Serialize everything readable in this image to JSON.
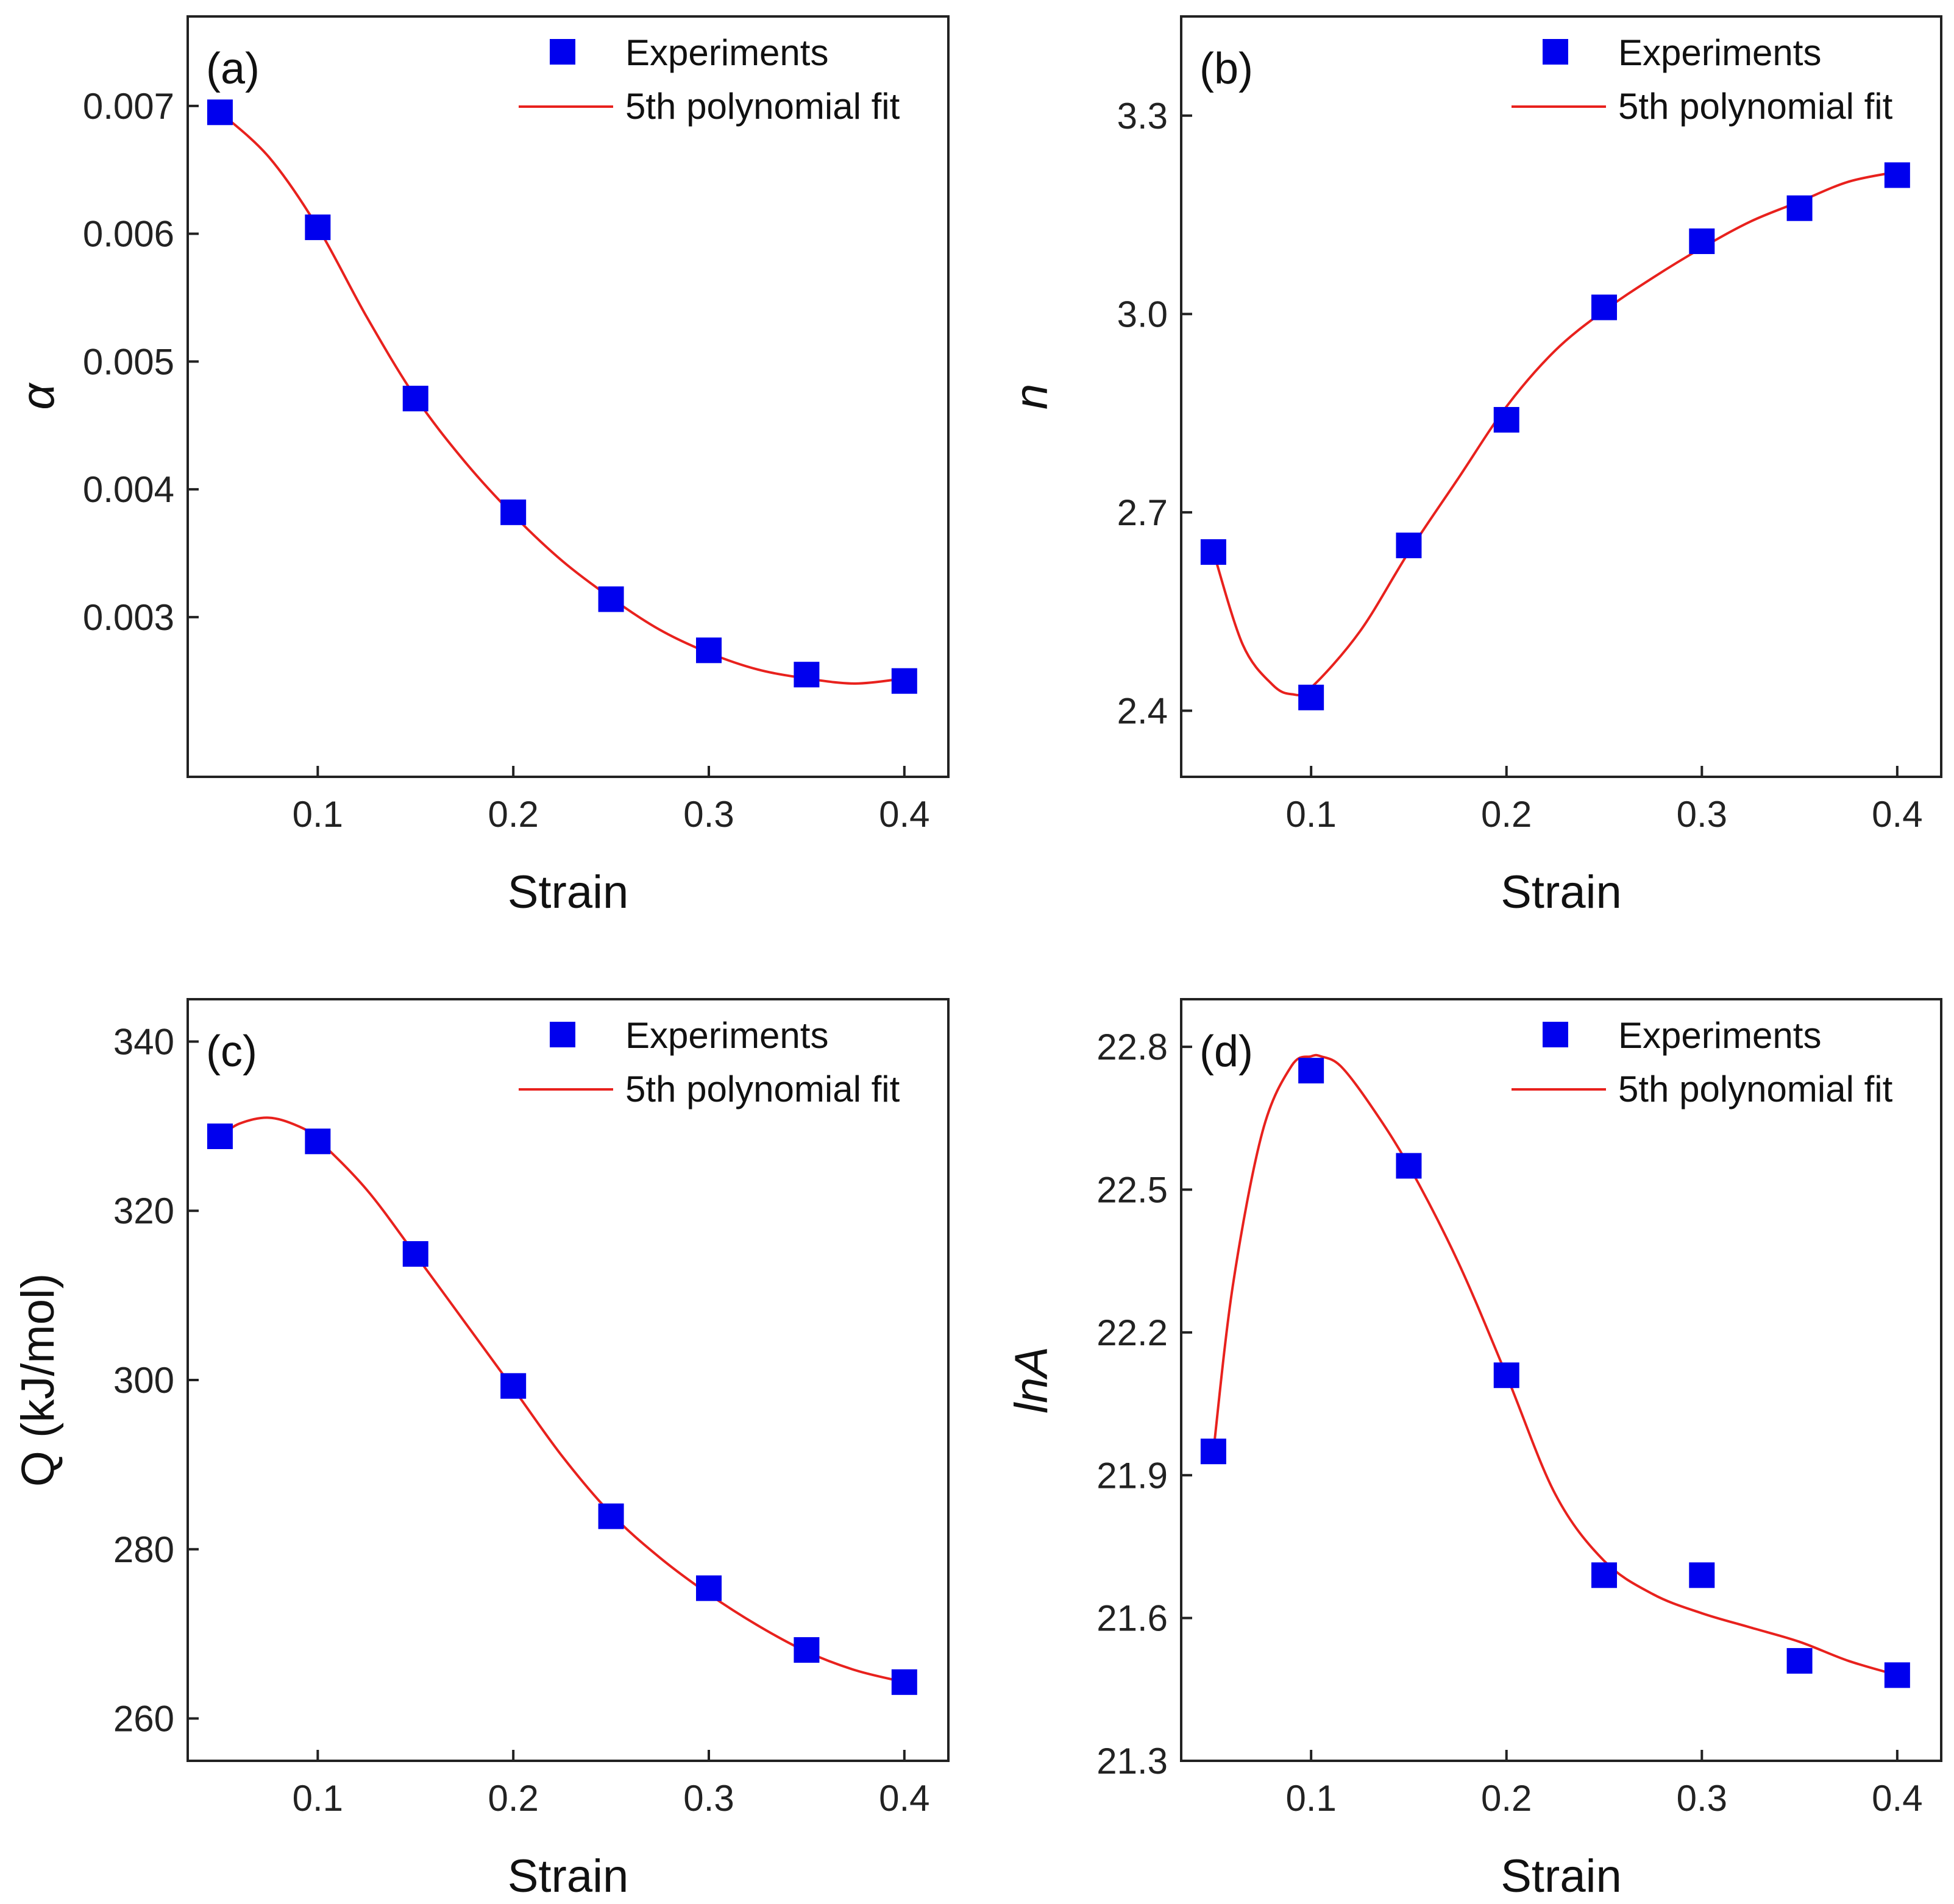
{
  "chart_data": [
    {
      "type": "scatter",
      "panel_label": "(a)",
      "xlabel": "Strain",
      "ylabel": "α",
      "xlim": [
        0.0335,
        0.4225
      ],
      "ylim": [
        0.00175,
        0.0077
      ],
      "xticks": [
        0.1,
        0.2,
        0.3,
        0.4
      ],
      "xtick_labels": [
        "0.1",
        "0.2",
        "0.3",
        "0.4"
      ],
      "yticks": [
        0.003,
        0.004,
        0.005,
        0.006,
        0.007
      ],
      "ytick_labels": [
        "0.003",
        "0.004",
        "0.005",
        "0.006",
        "0.007"
      ],
      "legend": {
        "position": "top-right",
        "entries": [
          "Experiments",
          "5th polynomial fit"
        ]
      },
      "series": [
        {
          "name": "Experiments",
          "kind": "scatter",
          "color": "#0000ee",
          "x": [
            0.05,
            0.1,
            0.15,
            0.2,
            0.25,
            0.3,
            0.35,
            0.4
          ],
          "y": [
            0.00695,
            0.00605,
            0.00471,
            0.00382,
            0.00314,
            0.00274,
            0.00255,
            0.0025
          ]
        },
        {
          "name": "5th polynomial fit",
          "kind": "line",
          "color": "#e8211d",
          "x": [
            0.05,
            0.075,
            0.1,
            0.125,
            0.15,
            0.175,
            0.2,
            0.225,
            0.25,
            0.275,
            0.3,
            0.325,
            0.35,
            0.375,
            0.4
          ],
          "y": [
            0.00695,
            0.0066,
            0.00605,
            0.00535,
            0.00472,
            0.00422,
            0.0038,
            0.00344,
            0.00315,
            0.0029,
            0.00272,
            0.00259,
            0.00252,
            0.00248,
            0.00252
          ]
        }
      ]
    },
    {
      "type": "scatter",
      "panel_label": "(b)",
      "xlabel": "Strain",
      "ylabel": "n",
      "xlim": [
        0.0335,
        0.4225
      ],
      "ylim": [
        2.3,
        3.45
      ],
      "xticks": [
        0.1,
        0.2,
        0.3,
        0.4
      ],
      "xtick_labels": [
        "0.1",
        "0.2",
        "0.3",
        "0.4"
      ],
      "yticks": [
        2.4,
        2.7,
        3.0,
        3.3
      ],
      "ytick_labels": [
        "2.4",
        "2.7",
        "3.0",
        "3.3"
      ],
      "legend": {
        "position": "top-right",
        "entries": [
          "Experiments",
          "5th polynomial fit"
        ]
      },
      "series": [
        {
          "name": "Experiments",
          "kind": "scatter",
          "color": "#0000ee",
          "x": [
            0.05,
            0.1,
            0.15,
            0.2,
            0.25,
            0.3,
            0.35,
            0.4
          ],
          "y": [
            2.64,
            2.42,
            2.65,
            2.84,
            3.01,
            3.11,
            3.16,
            3.21
          ]
        },
        {
          "name": "5th polynomial fit",
          "kind": "line",
          "color": "#e8211d",
          "x": [
            0.05,
            0.065,
            0.08,
            0.09,
            0.1,
            0.125,
            0.15,
            0.175,
            0.2,
            0.225,
            0.25,
            0.275,
            0.3,
            0.325,
            0.35,
            0.375,
            0.4
          ],
          "y": [
            2.64,
            2.5,
            2.44,
            2.425,
            2.435,
            2.52,
            2.64,
            2.75,
            2.86,
            2.945,
            3.005,
            3.055,
            3.1,
            3.14,
            3.17,
            3.2,
            3.215
          ]
        }
      ]
    },
    {
      "type": "scatter",
      "panel_label": "(c)",
      "xlabel": "Strain",
      "ylabel": "Q (kJ/mol)",
      "xlim": [
        0.0335,
        0.4225
      ],
      "ylim": [
        255,
        345
      ],
      "xticks": [
        0.1,
        0.2,
        0.3,
        0.4
      ],
      "xtick_labels": [
        "0.1",
        "0.2",
        "0.3",
        "0.4"
      ],
      "yticks": [
        260,
        280,
        300,
        320,
        340
      ],
      "ytick_labels": [
        "260",
        "280",
        "300",
        "320",
        "340"
      ],
      "legend": {
        "position": "top-right",
        "entries": [
          "Experiments",
          "5th polynomial fit"
        ]
      },
      "series": [
        {
          "name": "Experiments",
          "kind": "scatter",
          "color": "#0000ee",
          "x": [
            0.05,
            0.1,
            0.15,
            0.2,
            0.25,
            0.3,
            0.35,
            0.4
          ],
          "y": [
            328.8,
            328.2,
            314.9,
            299.3,
            283.9,
            275.4,
            268.1,
            264.3
          ]
        },
        {
          "name": "5th polynomial fit",
          "kind": "line",
          "color": "#e8211d",
          "x": [
            0.05,
            0.06,
            0.075,
            0.09,
            0.1,
            0.125,
            0.15,
            0.175,
            0.2,
            0.225,
            0.25,
            0.275,
            0.3,
            0.325,
            0.35,
            0.375,
            0.4
          ],
          "y": [
            328.8,
            330.3,
            331.0,
            330.0,
            328.4,
            322.5,
            314.8,
            306.9,
            299.0,
            291.0,
            284.2,
            279.0,
            274.7,
            271.0,
            267.9,
            265.7,
            264.3
          ]
        }
      ]
    },
    {
      "type": "scatter",
      "panel_label": "(d)",
      "xlabel": "Strain",
      "ylabel": "lnA",
      "xlim": [
        0.0335,
        0.4225
      ],
      "ylim": [
        21.3,
        22.9
      ],
      "xticks": [
        0.1,
        0.2,
        0.3,
        0.4
      ],
      "xtick_labels": [
        "0.1",
        "0.2",
        "0.3",
        "0.4"
      ],
      "yticks": [
        21.3,
        21.6,
        21.9,
        22.2,
        22.5,
        22.8
      ],
      "ytick_labels": [
        "21.3",
        "21.6",
        "21.9",
        "22.2",
        "22.5",
        "22.8"
      ],
      "legend": {
        "position": "top-right",
        "entries": [
          "Experiments",
          "5th polynomial fit"
        ]
      },
      "series": [
        {
          "name": "Experiments",
          "kind": "scatter",
          "color": "#0000ee",
          "x": [
            0.05,
            0.1,
            0.15,
            0.2,
            0.25,
            0.3,
            0.35,
            0.4
          ],
          "y": [
            21.95,
            22.75,
            22.55,
            22.11,
            21.69,
            21.69,
            21.51,
            21.48
          ]
        },
        {
          "name": "5th polynomial fit",
          "kind": "line",
          "color": "#e8211d",
          "x": [
            0.05,
            0.06,
            0.075,
            0.09,
            0.1,
            0.105,
            0.115,
            0.13,
            0.15,
            0.175,
            0.2,
            0.225,
            0.25,
            0.275,
            0.3,
            0.325,
            0.35,
            0.375,
            0.4
          ],
          "y": [
            21.95,
            22.3,
            22.62,
            22.76,
            22.78,
            22.78,
            22.76,
            22.68,
            22.55,
            22.35,
            22.11,
            21.86,
            21.72,
            21.65,
            21.61,
            21.58,
            21.55,
            21.51,
            21.48
          ]
        }
      ]
    }
  ]
}
